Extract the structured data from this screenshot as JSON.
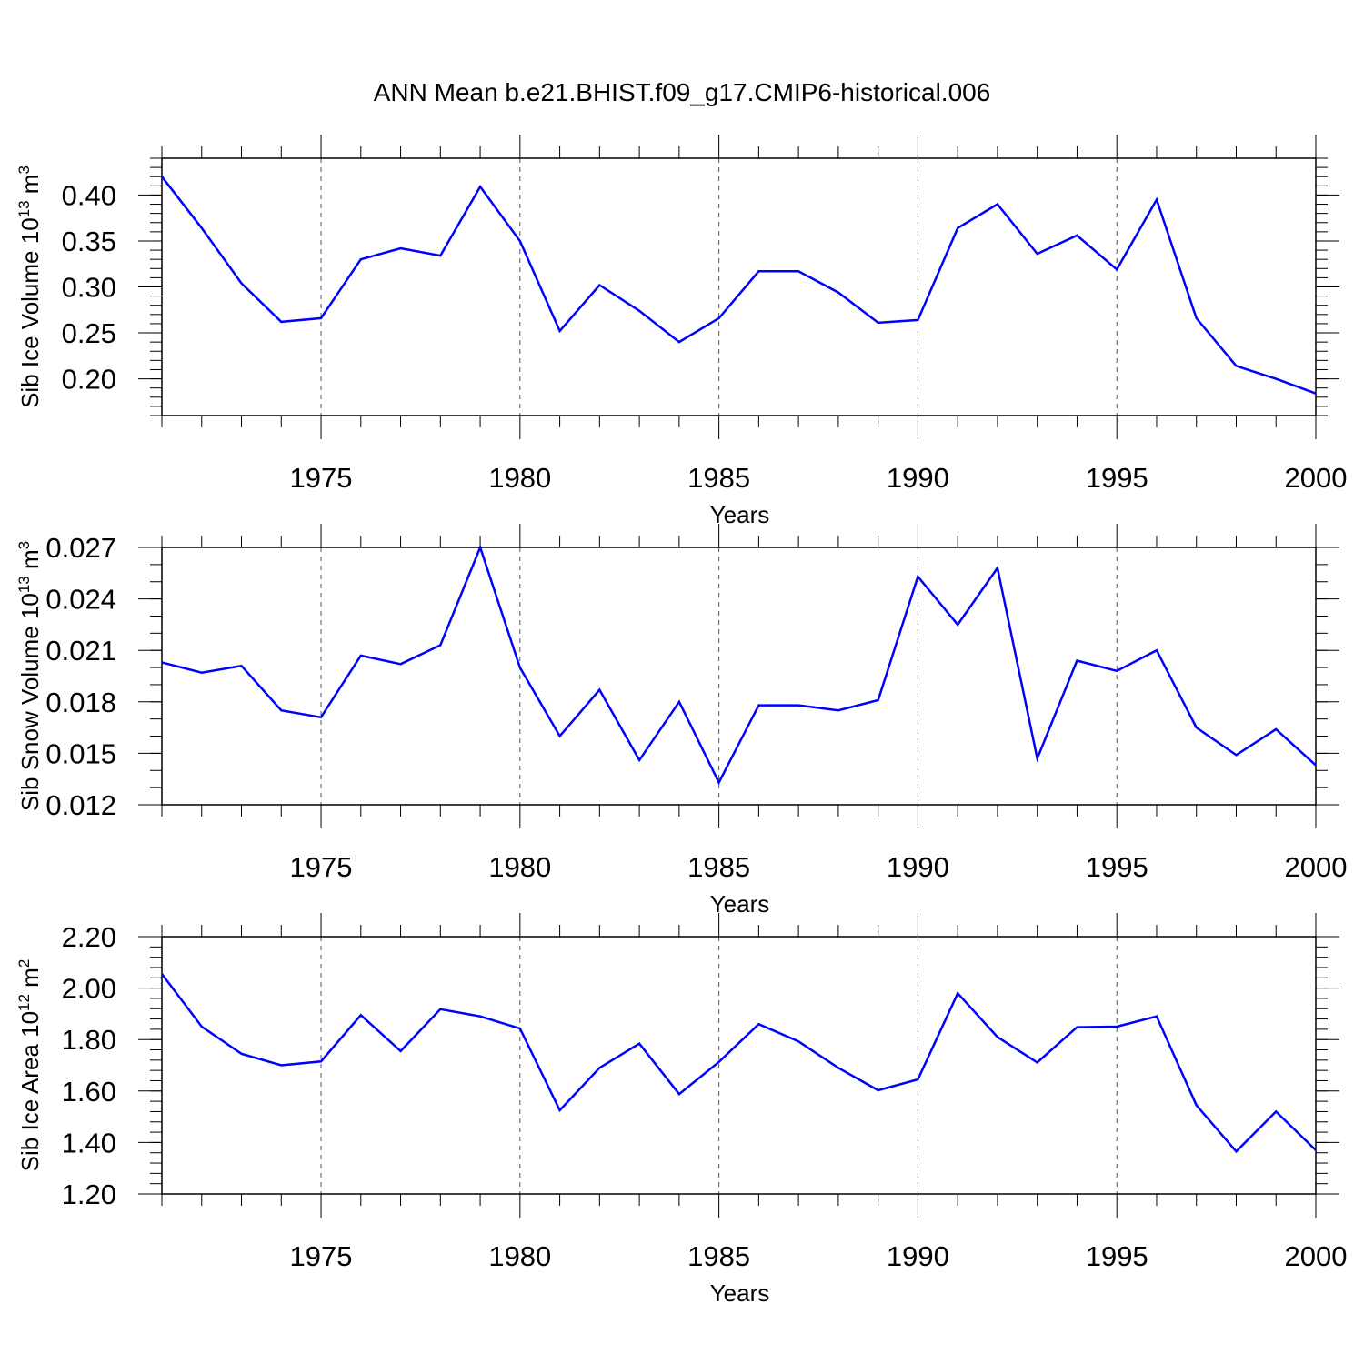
{
  "figure": {
    "title": "ANN Mean b.e21.BHIST.f09_g17.CMIP6-historical.006"
  },
  "chart_data": [
    {
      "type": "line",
      "xlabel": "Years",
      "ylabel": {
        "base": "Sib Ice Volume 10",
        "exp": "13",
        "unit": " m",
        "unit_exp": "3"
      },
      "xlim": [
        1971,
        2000
      ],
      "ylim": [
        0.16,
        0.44
      ],
      "x_ticks": [
        1975,
        1980,
        1985,
        1990,
        1995,
        2000
      ],
      "y_ticks": [
        0.2,
        0.25,
        0.3,
        0.35,
        0.4
      ],
      "y_tick_labels": [
        "0.20",
        "0.25",
        "0.30",
        "0.35",
        "0.40"
      ],
      "y_minor_step": 0.01,
      "grid": "vertical dashed at major x ticks",
      "line_color": "#0000ff",
      "x": [
        1971,
        1972,
        1973,
        1974,
        1975,
        1976,
        1977,
        1978,
        1979,
        1980,
        1981,
        1982,
        1983,
        1984,
        1985,
        1986,
        1987,
        1988,
        1989,
        1990,
        1991,
        1992,
        1993,
        1994,
        1995,
        1996,
        1997,
        1998,
        1999,
        2000
      ],
      "y": [
        0.42,
        0.364,
        0.304,
        0.262,
        0.266,
        0.33,
        0.342,
        0.334,
        0.409,
        0.35,
        0.252,
        0.302,
        0.274,
        0.24,
        0.266,
        0.317,
        0.317,
        0.294,
        0.261,
        0.264,
        0.364,
        0.39,
        0.336,
        0.356,
        0.319,
        0.395,
        0.266,
        0.214,
        0.2,
        0.184
      ]
    },
    {
      "type": "line",
      "xlabel": "Years",
      "ylabel": {
        "base": "Sib Snow Volume 10",
        "exp": "13",
        "unit": " m",
        "unit_exp": "3"
      },
      "xlim": [
        1971,
        2000
      ],
      "ylim": [
        0.012,
        0.027
      ],
      "x_ticks": [
        1975,
        1980,
        1985,
        1990,
        1995,
        2000
      ],
      "y_ticks": [
        0.012,
        0.015,
        0.018,
        0.021,
        0.024,
        0.027
      ],
      "y_tick_labels": [
        "0.012",
        "0.015",
        "0.018",
        "0.021",
        "0.024",
        "0.027"
      ],
      "y_minor_step": 0.001,
      "grid": "vertical dashed at major x ticks",
      "line_color": "#0000ff",
      "x": [
        1971,
        1972,
        1973,
        1974,
        1975,
        1976,
        1977,
        1978,
        1979,
        1980,
        1981,
        1982,
        1983,
        1984,
        1985,
        1986,
        1987,
        1988,
        1989,
        1990,
        1991,
        1992,
        1993,
        1994,
        1995,
        1996,
        1997,
        1998,
        1999,
        2000
      ],
      "y": [
        0.0203,
        0.0197,
        0.0201,
        0.0175,
        0.0171,
        0.0207,
        0.0202,
        0.0213,
        0.027,
        0.02,
        0.016,
        0.0187,
        0.0146,
        0.018,
        0.0133,
        0.0178,
        0.0178,
        0.0175,
        0.0181,
        0.0253,
        0.0225,
        0.0258,
        0.0147,
        0.0204,
        0.0198,
        0.021,
        0.0165,
        0.0149,
        0.0164,
        0.0143
      ]
    },
    {
      "type": "line",
      "xlabel": "Years",
      "ylabel": {
        "base": "Sib Ice Area 10",
        "exp": "12",
        "unit": " m",
        "unit_exp": "2"
      },
      "xlim": [
        1971,
        2000
      ],
      "ylim": [
        1.2,
        2.2
      ],
      "x_ticks": [
        1975,
        1980,
        1985,
        1990,
        1995,
        2000
      ],
      "y_ticks": [
        1.2,
        1.4,
        1.6,
        1.8,
        2.0,
        2.2
      ],
      "y_tick_labels": [
        "1.20",
        "1.40",
        "1.60",
        "1.80",
        "2.00",
        "2.20"
      ],
      "y_minor_step": 0.04,
      "grid": "vertical dashed at major x ticks",
      "line_color": "#0000ff",
      "x": [
        1971,
        1972,
        1973,
        1974,
        1975,
        1976,
        1977,
        1978,
        1979,
        1980,
        1981,
        1982,
        1983,
        1984,
        1985,
        1986,
        1987,
        1988,
        1989,
        1990,
        1991,
        1992,
        1993,
        1994,
        1995,
        1996,
        1997,
        1998,
        1999,
        2000
      ],
      "y": [
        2.055,
        1.85,
        1.745,
        1.7,
        1.715,
        1.895,
        1.755,
        1.918,
        1.89,
        1.843,
        1.525,
        1.69,
        1.784,
        1.588,
        1.713,
        1.86,
        1.793,
        1.69,
        1.603,
        1.645,
        1.98,
        1.81,
        1.711,
        1.848,
        1.85,
        1.89,
        1.545,
        1.365,
        1.52,
        1.37
      ]
    }
  ]
}
